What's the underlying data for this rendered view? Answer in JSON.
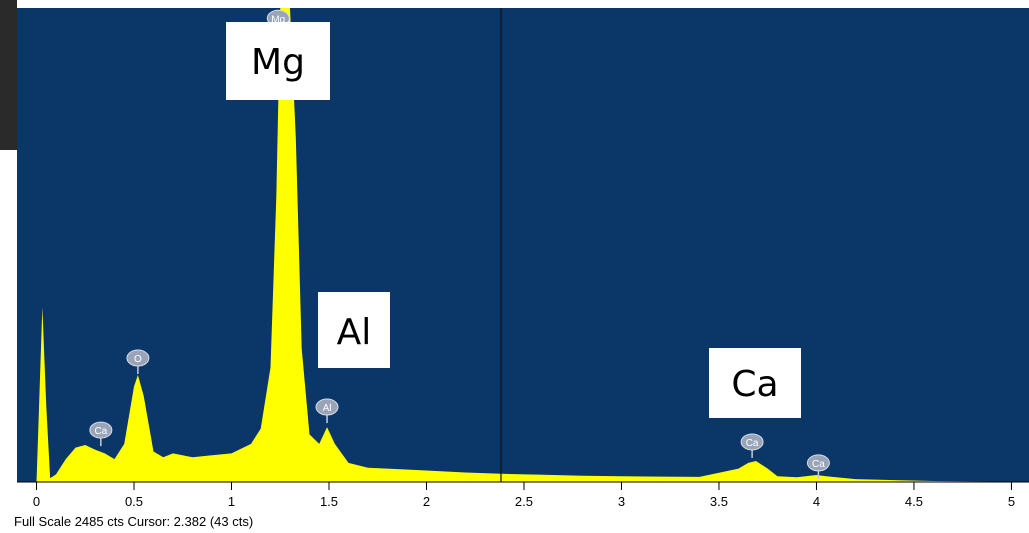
{
  "chart_data": {
    "type": "area",
    "color": "#ffff00",
    "background": "#0b3668",
    "x": [
      0,
      0.01,
      0.03,
      0.05,
      0.07,
      0.1,
      0.15,
      0.2,
      0.25,
      0.3,
      0.35,
      0.4,
      0.45,
      0.5,
      0.52,
      0.55,
      0.6,
      0.65,
      0.7,
      0.8,
      0.9,
      1.0,
      1.1,
      1.15,
      1.2,
      1.23,
      1.25,
      1.3,
      1.33,
      1.36,
      1.4,
      1.45,
      1.49,
      1.53,
      1.6,
      1.7,
      1.8,
      2.0,
      2.2,
      2.382,
      2.6,
      2.8,
      3.0,
      3.2,
      3.4,
      3.6,
      3.65,
      3.69,
      3.75,
      3.8,
      3.9,
      4.0,
      4.05,
      4.2,
      4.4,
      4.6,
      4.8,
      5.0
    ],
    "values": [
      0,
      300,
      917,
      400,
      20,
      40,
      120,
      180,
      194,
      170,
      150,
      120,
      200,
      500,
      561,
      450,
      160,
      130,
      150,
      130,
      140,
      150,
      200,
      280,
      600,
      1500,
      2485,
      2485,
      1800,
      700,
      250,
      200,
      288,
      200,
      100,
      75,
      70,
      60,
      50,
      43,
      38,
      33,
      30,
      28,
      27,
      70,
      100,
      110,
      70,
      30,
      25,
      37,
      30,
      15,
      10,
      5,
      3,
      2
    ],
    "xlim": [
      -0.1,
      5.09
    ],
    "ylim": [
      0,
      2485
    ],
    "xticks": [
      0,
      0.5,
      1,
      1.5,
      2,
      2.5,
      3,
      3.5,
      4,
      4.5,
      5
    ],
    "cursor_x": 2.382,
    "peak_markers": [
      {
        "label": "Ca",
        "x": 0.33,
        "y": 272
      },
      {
        "label": "O",
        "x": 0.52,
        "y": 650
      },
      {
        "label": "Mg",
        "x": 1.24,
        "y": 2431
      },
      {
        "label": "Al",
        "x": 1.49,
        "y": 393
      },
      {
        "label": "Ca",
        "x": 3.67,
        "y": 210
      },
      {
        "label": "Ca",
        "x": 4.01,
        "y": 100
      }
    ],
    "element_labels": [
      "Mg",
      "Al",
      "Ca"
    ],
    "footer": "Full Scale 2485 cts Cursor: 2.382  (43 cts)"
  }
}
